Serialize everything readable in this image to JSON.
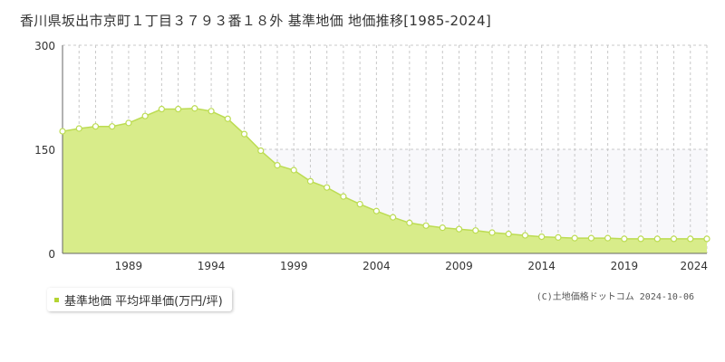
{
  "chart_data": {
    "type": "area",
    "title": "香川県坂出市京町１丁目３７９３番１８外 基準地価 地価推移[1985-2024]",
    "x": [
      1985,
      1986,
      1987,
      1988,
      1989,
      1990,
      1991,
      1992,
      1993,
      1994,
      1995,
      1996,
      1997,
      1998,
      1999,
      2000,
      2001,
      2002,
      2003,
      2004,
      2005,
      2006,
      2007,
      2008,
      2009,
      2010,
      2011,
      2012,
      2013,
      2014,
      2015,
      2016,
      2017,
      2018,
      2019,
      2020,
      2021,
      2022,
      2023,
      2024
    ],
    "series": [
      {
        "name": "基準地価 平均坪単価(万円/坪)",
        "values": [
          176,
          180,
          183,
          183,
          188,
          198,
          208,
          208,
          209,
          205,
          194,
          172,
          148,
          127,
          120,
          104,
          95,
          82,
          71,
          61,
          52,
          44,
          40,
          37,
          35,
          33,
          30,
          28,
          26,
          24,
          23,
          22,
          22,
          22,
          21,
          21,
          21,
          21,
          21,
          21
        ]
      }
    ],
    "ylim": [
      0,
      300
    ],
    "yticks": [
      0,
      150,
      300
    ],
    "xticks": [
      1989,
      1994,
      1999,
      2004,
      2009,
      2014,
      2019,
      2024
    ],
    "xlim": [
      1985,
      2024
    ],
    "xlabel": "",
    "ylabel": "",
    "grid": true,
    "legend_position": "bottom-left",
    "fill_color": "#d8ec8a",
    "line_color": "#bcdc52",
    "marker_fill": "#ffffff",
    "band_color": "#f8f8fb"
  },
  "legend": {
    "label": "基準地価 平均坪単価(万円/坪)",
    "marker_color": "#b4d432"
  },
  "copyright": "(C)土地価格ドットコム 2024-10-06"
}
